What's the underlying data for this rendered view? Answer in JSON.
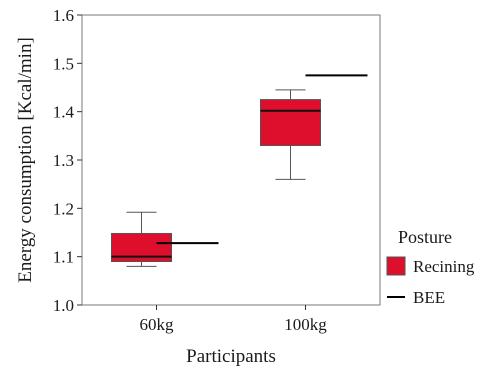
{
  "chart_data": {
    "type": "box",
    "xlabel": "Participants",
    "ylabel": "Energy consumption [Kcal/min]",
    "categories": [
      "60kg",
      "100kg"
    ],
    "ylim": [
      1.0,
      1.6
    ],
    "yticks": [
      1.0,
      1.1,
      1.2,
      1.3,
      1.4,
      1.5,
      1.6
    ],
    "ytick_labels": [
      "1.0",
      "1.1",
      "1.2",
      "1.3",
      "1.4",
      "1.5",
      "1.6"
    ],
    "grid": false,
    "legend": {
      "title": "Posture",
      "position": "right",
      "entries": [
        {
          "label": "Recining",
          "kind": "box",
          "color": "#dd0f2d"
        },
        {
          "label": "BEE",
          "kind": "line",
          "color": "#000000"
        }
      ]
    },
    "series": [
      {
        "name": "Recining",
        "kind": "boxplot",
        "color": "#dd0f2d",
        "boxes": [
          {
            "category": "60kg",
            "whisker_low": 1.08,
            "q1": 1.09,
            "median": 1.1,
            "q3": 1.148,
            "whisker_high": 1.192
          },
          {
            "category": "100kg",
            "whisker_low": 1.26,
            "q1": 1.33,
            "median": 1.402,
            "q3": 1.425,
            "whisker_high": 1.445
          }
        ]
      },
      {
        "name": "BEE",
        "kind": "reference_line",
        "color": "#000000",
        "values": [
          {
            "category": "60kg",
            "value": 1.128
          },
          {
            "category": "100kg",
            "value": 1.475
          }
        ]
      }
    ]
  }
}
